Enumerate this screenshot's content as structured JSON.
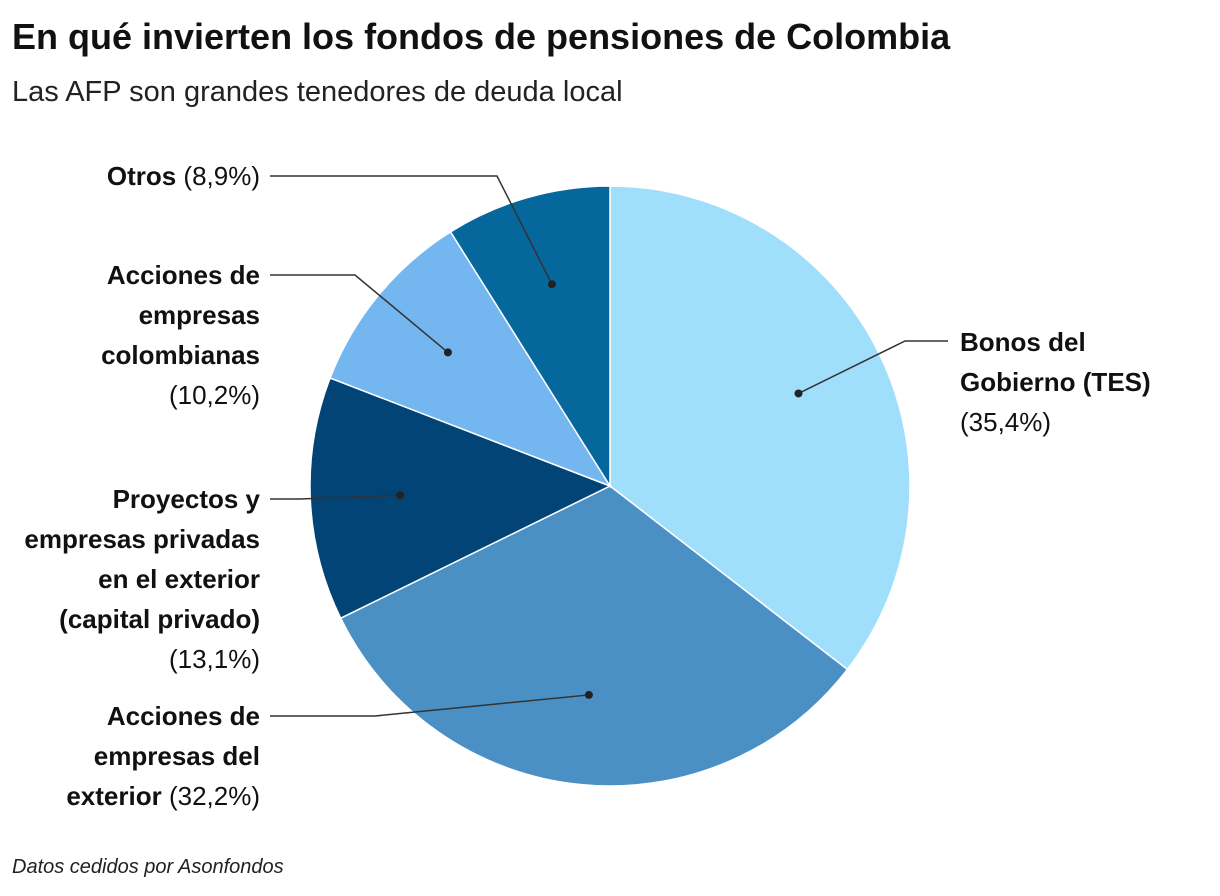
{
  "chart_data": {
    "type": "pie",
    "title": "En qué invierten los fondos de pensiones de Colombia",
    "subtitle": "Las AFP son grandes tenedores de deuda local",
    "source": "Datos cedidos por Asonfondos",
    "categories": [
      "Bonos del Gobierno (TES)",
      "Acciones de empresas del exterior",
      "Proyectos y empresas privadas en el exterior (capital privado)",
      "Acciones de empresas colombianas",
      "Otros"
    ],
    "values": [
      35.4,
      32.2,
      13.1,
      10.2,
      8.9
    ],
    "value_labels": [
      "(35,4%)",
      "(32,2%)",
      "(13,1%)",
      "(10,2%)",
      "(8,9%)"
    ],
    "colors": [
      "#a0dffc",
      "#4a90c4",
      "#024476",
      "#74b6ef",
      "#06679c"
    ]
  }
}
